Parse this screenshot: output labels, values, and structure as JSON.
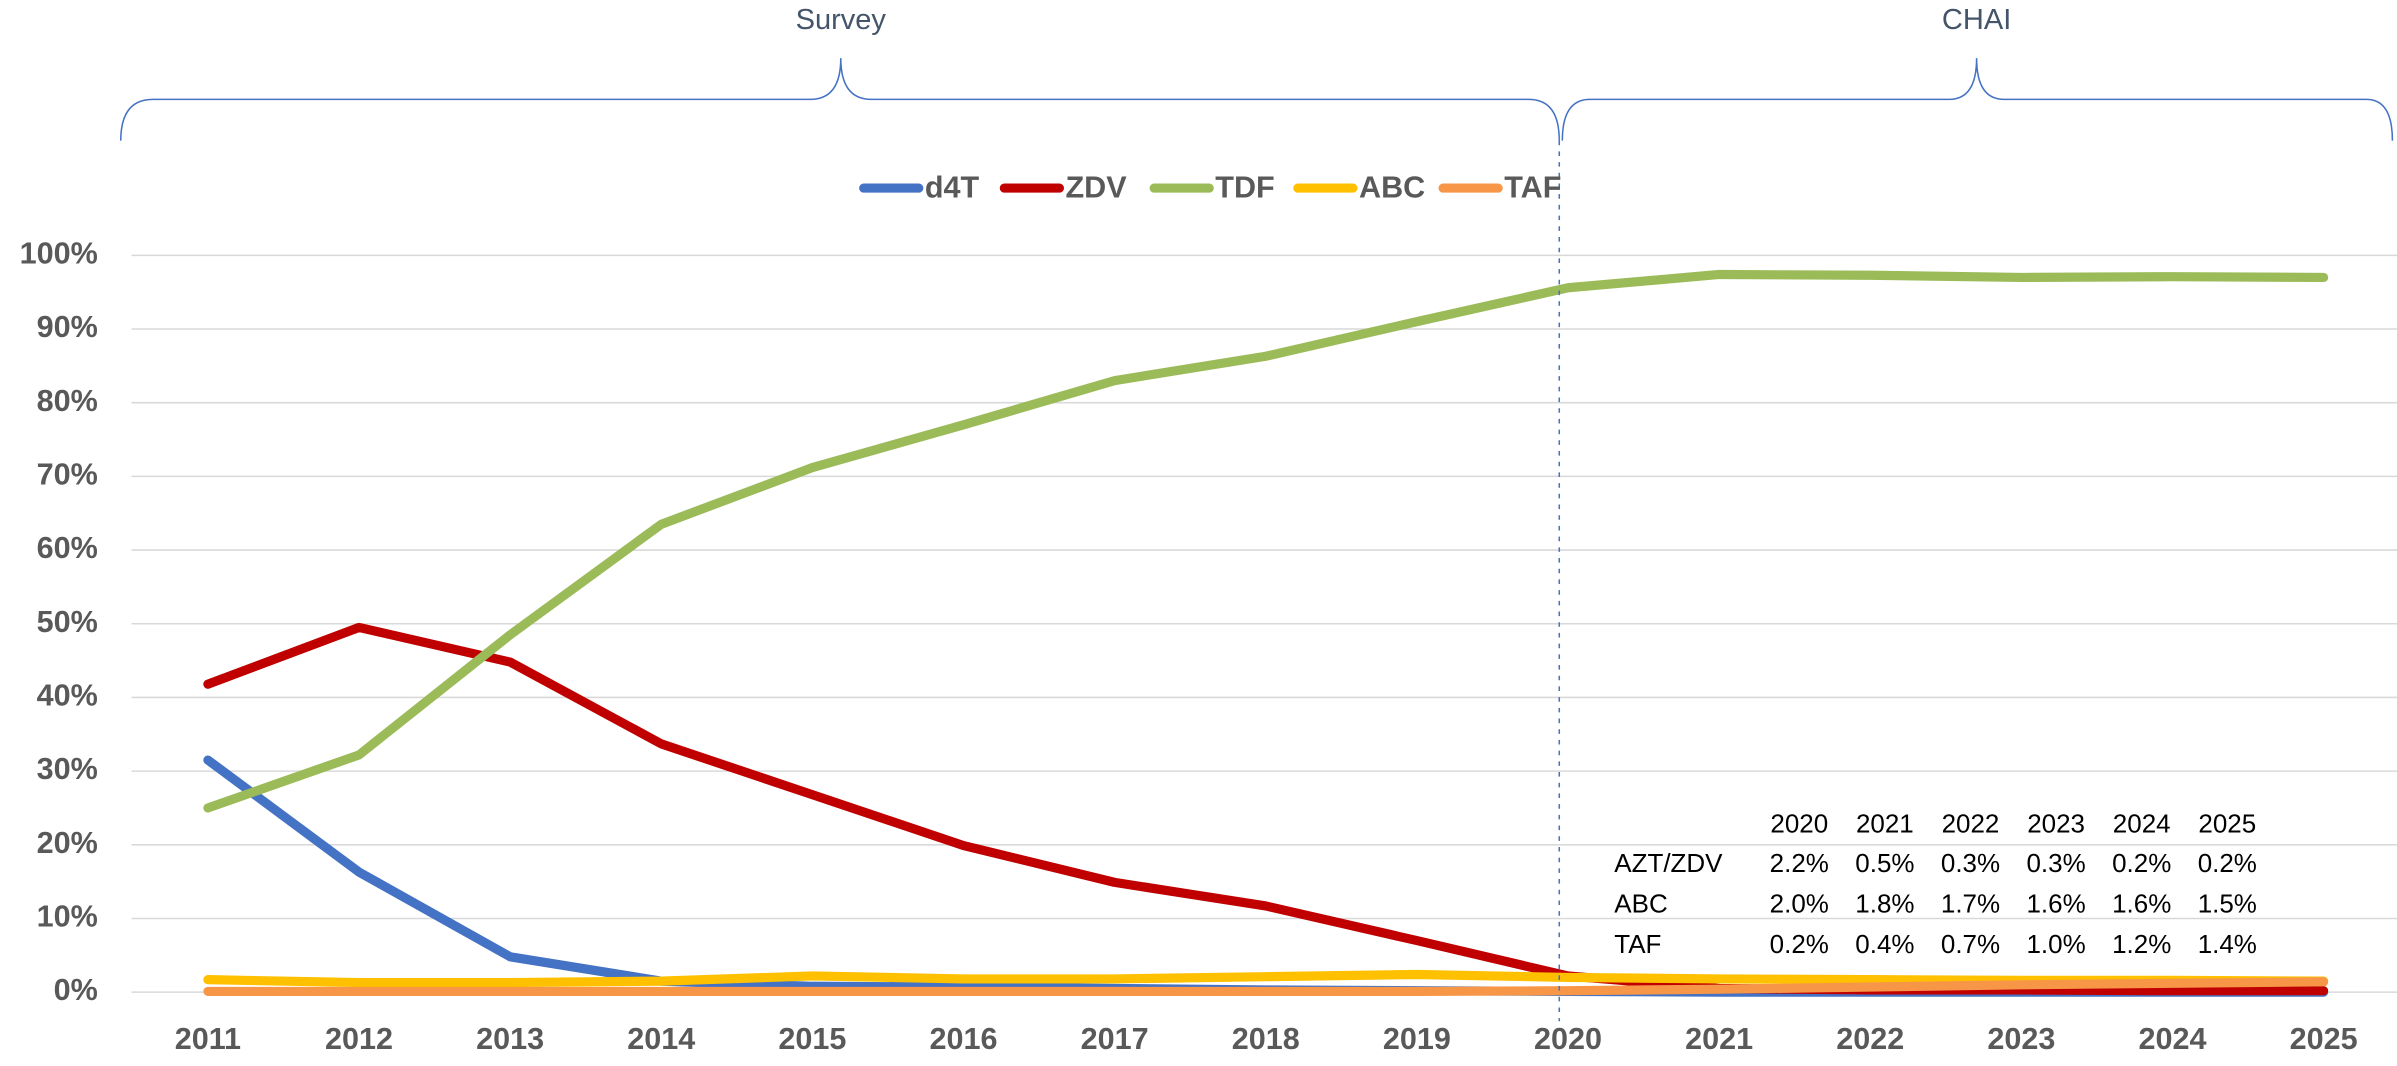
{
  "chart_data": {
    "type": "line",
    "categories": [
      "2011",
      "2012",
      "2013",
      "2014",
      "2015",
      "2016",
      "2017",
      "2018",
      "2019",
      "2020",
      "2021",
      "2022",
      "2023",
      "2024",
      "2025"
    ],
    "series": [
      {
        "name": "d4T",
        "color": "#4472c4",
        "values": [
          31.5,
          16.3,
          4.8,
          1.5,
          0.8,
          0.7,
          0.5,
          0.3,
          0.2,
          0.1,
          0,
          0,
          0,
          0,
          0
        ]
      },
      {
        "name": "ZDV",
        "color": "#c00000",
        "values": [
          41.8,
          49.5,
          44.8,
          33.7,
          26.8,
          19.9,
          14.9,
          11.7,
          7.0,
          2.2,
          0.5,
          0.3,
          0.3,
          0.2,
          0.2
        ]
      },
      {
        "name": "TDF",
        "color": "#9bbb59",
        "values": [
          25.0,
          32.2,
          48.5,
          63.5,
          71.2,
          77.0,
          83.0,
          86.3,
          91.0,
          95.6,
          97.4,
          97.3,
          97.0,
          97.1,
          97.0
        ]
      },
      {
        "name": "ABC",
        "color": "#ffc000",
        "values": [
          1.7,
          1.3,
          1.3,
          1.5,
          2.2,
          1.8,
          1.8,
          2.1,
          2.4,
          2.0,
          1.8,
          1.7,
          1.6,
          1.6,
          1.5
        ]
      },
      {
        "name": "TAF",
        "color": "#f79646",
        "values": [
          0.1,
          0.1,
          0.1,
          0.1,
          0.1,
          0.1,
          0.1,
          0.1,
          0.1,
          0.2,
          0.4,
          0.7,
          1.0,
          1.2,
          1.4
        ]
      }
    ],
    "ylim": [
      0,
      100
    ],
    "yticks": [
      {
        "value": 0,
        "label": "0%"
      },
      {
        "value": 10,
        "label": "10%"
      },
      {
        "value": 20,
        "label": "20%"
      },
      {
        "value": 30,
        "label": "30%"
      },
      {
        "value": 40,
        "label": "40%"
      },
      {
        "value": 50,
        "label": "50%"
      },
      {
        "value": 60,
        "label": "60%"
      },
      {
        "value": 70,
        "label": "70%"
      },
      {
        "value": 80,
        "label": "80%"
      },
      {
        "value": 90,
        "label": "90%"
      },
      {
        "value": 100,
        "label": "100%"
      }
    ],
    "grid": true,
    "legend": "top",
    "annotations": [
      "Survey",
      "CHAI"
    ],
    "table": {
      "header": [
        "2020",
        "2021",
        "2022",
        "2023",
        "2024",
        "2025"
      ],
      "rows": [
        {
          "label": "AZT/ZDV",
          "cells": [
            "2.2%",
            "0.5%",
            "0.3%",
            "0.3%",
            "0.2%",
            "0.2%"
          ]
        },
        {
          "label": "ABC",
          "cells": [
            "2.0%",
            "1.8%",
            "1.7%",
            "1.6%",
            "1.6%",
            "1.5%"
          ]
        },
        {
          "label": "TAF",
          "cells": [
            "0.2%",
            "0.4%",
            "0.7%",
            "1.0%",
            "1.2%",
            "1.4%"
          ]
        }
      ]
    }
  }
}
